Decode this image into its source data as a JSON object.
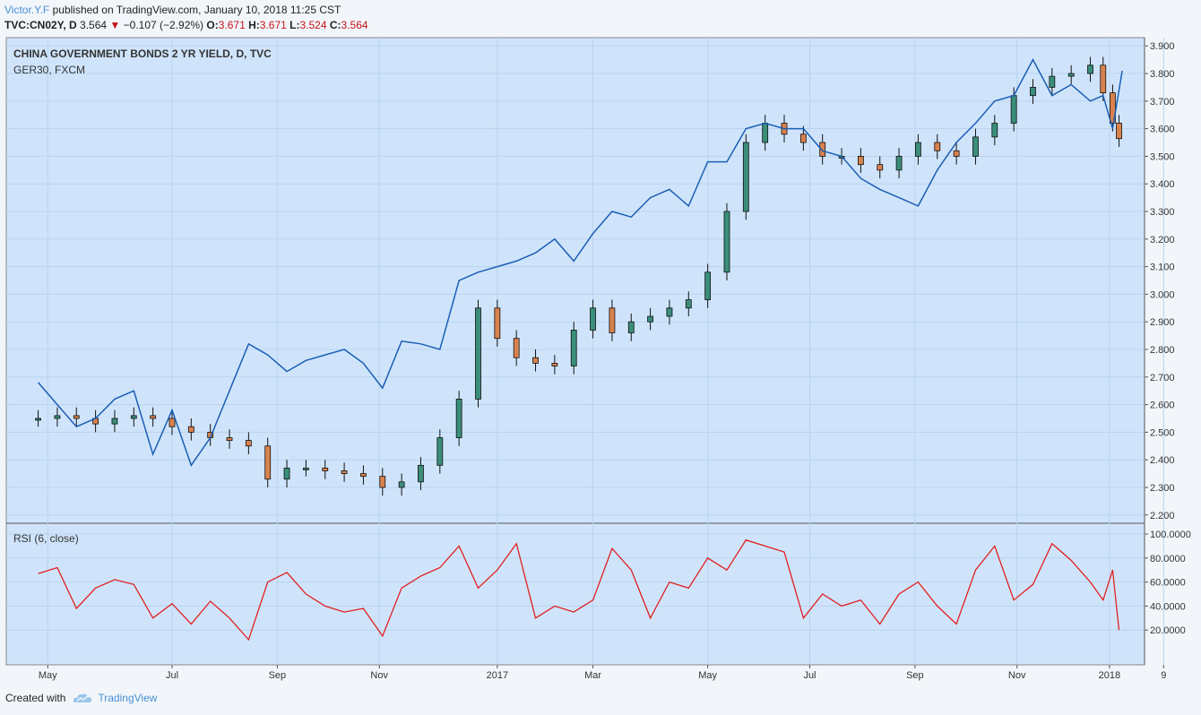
{
  "header": {
    "author": "Victor.Y.F",
    "published_text": "published on TradingView.com, January 10, 2018 11:25 CST",
    "symbol": "TVC:CN02Y, D",
    "last": "3.564",
    "change": "−0.107 (−2.92%)",
    "o_label": "O:",
    "o_value": "3.671",
    "h_label": "H:",
    "h_value": "3.671",
    "l_label": "L:",
    "l_value": "3.524",
    "c_label": "C:",
    "c_value": "3.564"
  },
  "footer": {
    "created_with": "Created with",
    "brand": "TradingView"
  },
  "colors": {
    "pane_bg": "#cfe4fb",
    "blue_line": "#1b5eb5",
    "rsi_line": "#e11f1f",
    "up_candle": "#3a8e7a",
    "down_candle": "#d9824e",
    "accent": "#4a8fd6"
  },
  "chart_data": [
    {
      "type": "line",
      "title": "CHINA GOVERNMENT BONDS 2 YR YIELD, D, TVC",
      "overlay_label": "GER30, FXCM",
      "x_ticks": [
        "May",
        "Jul",
        "Sep",
        "Nov",
        "2017",
        "Mar",
        "May",
        "Jul",
        "Sep",
        "Nov",
        "2018",
        "9"
      ],
      "y_ticks": [
        "3.900",
        "3.800",
        "3.700",
        "3.600",
        "3.500",
        "3.400",
        "3.300",
        "3.200",
        "3.100",
        "3.000",
        "2.900",
        "2.800",
        "2.700",
        "2.600",
        "2.500",
        "2.400",
        "2.300",
        "2.200"
      ],
      "ylim": [
        2.17,
        3.93
      ],
      "x_range_months": [
        3.7,
        21.55
      ],
      "series": [
        {
          "name": "TVC:CN02Y",
          "style": "candles",
          "x": [
            4.2,
            4.5,
            4.8,
            5.1,
            5.4,
            5.7,
            6.0,
            6.3,
            6.6,
            6.9,
            7.2,
            7.5,
            7.8,
            8.1,
            8.4,
            8.7,
            9.0,
            9.3,
            9.6,
            9.9,
            10.2,
            10.5,
            10.8,
            11.1,
            11.4,
            11.7,
            12.0,
            12.3,
            12.6,
            12.9,
            13.2,
            13.5,
            13.8,
            14.1,
            14.4,
            14.7,
            15.0,
            15.3,
            15.6,
            15.9,
            16.2,
            16.5,
            16.8,
            17.1,
            17.4,
            17.7,
            18.0,
            18.3,
            18.6,
            18.9,
            19.2,
            19.5,
            19.8,
            20.1,
            20.4,
            20.7,
            20.9,
            21.05,
            21.15
          ],
          "values": [
            2.55,
            2.56,
            2.55,
            2.53,
            2.55,
            2.56,
            2.55,
            2.52,
            2.5,
            2.48,
            2.47,
            2.45,
            2.33,
            2.37,
            2.37,
            2.36,
            2.35,
            2.34,
            2.3,
            2.32,
            2.38,
            2.48,
            2.62,
            2.95,
            2.84,
            2.77,
            2.75,
            2.74,
            2.87,
            2.95,
            2.86,
            2.9,
            2.92,
            2.95,
            2.98,
            3.08,
            3.3,
            3.55,
            3.62,
            3.58,
            3.55,
            3.5,
            3.5,
            3.47,
            3.45,
            3.5,
            3.55,
            3.52,
            3.5,
            3.57,
            3.62,
            3.72,
            3.75,
            3.79,
            3.8,
            3.83,
            3.73,
            3.62,
            3.564
          ]
        },
        {
          "name": "GER30, FXCM",
          "style": "line",
          "x": [
            4.2,
            4.5,
            4.8,
            5.1,
            5.4,
            5.7,
            6.0,
            6.3,
            6.6,
            6.9,
            7.2,
            7.5,
            7.8,
            8.1,
            8.4,
            8.7,
            9.0,
            9.3,
            9.6,
            9.9,
            10.2,
            10.5,
            10.8,
            11.1,
            11.4,
            11.7,
            12.0,
            12.3,
            12.6,
            12.9,
            13.2,
            13.5,
            13.8,
            14.1,
            14.4,
            14.7,
            15.0,
            15.3,
            15.6,
            15.9,
            16.2,
            16.5,
            16.8,
            17.1,
            17.4,
            17.7,
            18.0,
            18.3,
            18.6,
            18.9,
            19.2,
            19.5,
            19.8,
            20.1,
            20.4,
            20.7,
            20.9,
            21.05,
            21.2
          ],
          "values": [
            2.68,
            2.6,
            2.52,
            2.55,
            2.62,
            2.65,
            2.42,
            2.58,
            2.38,
            2.48,
            2.65,
            2.82,
            2.78,
            2.72,
            2.76,
            2.78,
            2.8,
            2.75,
            2.66,
            2.83,
            2.82,
            2.8,
            3.05,
            3.08,
            3.1,
            3.12,
            3.15,
            3.2,
            3.12,
            3.22,
            3.3,
            3.28,
            3.35,
            3.38,
            3.32,
            3.48,
            3.48,
            3.6,
            3.62,
            3.6,
            3.6,
            3.52,
            3.5,
            3.42,
            3.38,
            3.35,
            3.32,
            3.45,
            3.55,
            3.62,
            3.7,
            3.72,
            3.85,
            3.72,
            3.76,
            3.7,
            3.72,
            3.6,
            3.81
          ]
        }
      ]
    },
    {
      "type": "line",
      "title": "RSI (6, close)",
      "y_ticks": [
        "100.0000",
        "80.0000",
        "60.0000",
        "40.0000",
        "20.0000"
      ],
      "ylim": [
        0,
        100
      ],
      "series": [
        {
          "name": "RSI (6, close)",
          "x": [
            4.2,
            4.5,
            4.8,
            5.1,
            5.4,
            5.7,
            6.0,
            6.3,
            6.6,
            6.9,
            7.2,
            7.5,
            7.8,
            8.1,
            8.4,
            8.7,
            9.0,
            9.3,
            9.6,
            9.9,
            10.2,
            10.5,
            10.8,
            11.1,
            11.4,
            11.7,
            12.0,
            12.3,
            12.6,
            12.9,
            13.2,
            13.5,
            13.8,
            14.1,
            14.4,
            14.7,
            15.0,
            15.3,
            15.6,
            15.9,
            16.2,
            16.5,
            16.8,
            17.1,
            17.4,
            17.7,
            18.0,
            18.3,
            18.6,
            18.9,
            19.2,
            19.5,
            19.8,
            20.1,
            20.4,
            20.7,
            20.9,
            21.05,
            21.15
          ],
          "values": [
            67,
            72,
            38,
            55,
            62,
            58,
            30,
            42,
            25,
            44,
            30,
            12,
            60,
            68,
            50,
            40,
            35,
            38,
            15,
            55,
            65,
            72,
            90,
            55,
            70,
            92,
            30,
            40,
            35,
            45,
            88,
            70,
            30,
            60,
            55,
            80,
            70,
            95,
            90,
            85,
            30,
            50,
            40,
            45,
            25,
            50,
            60,
            40,
            25,
            70,
            90,
            45,
            58,
            92,
            78,
            60,
            45,
            70,
            20
          ]
        }
      ]
    }
  ]
}
